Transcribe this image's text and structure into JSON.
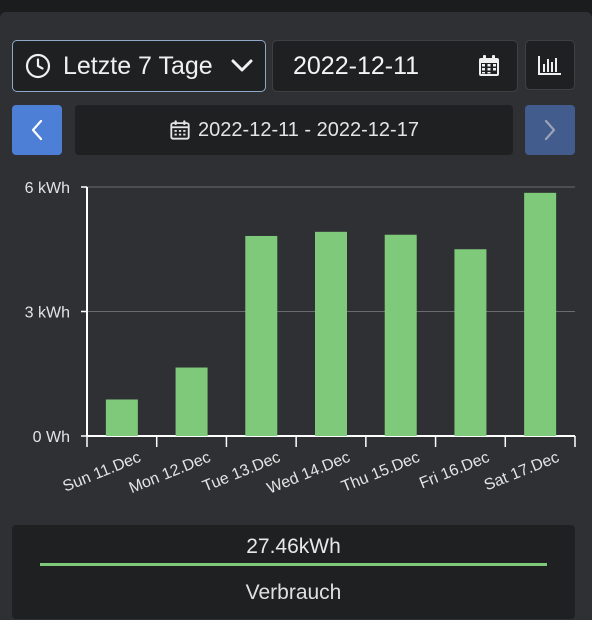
{
  "controls": {
    "range_label": "Letzte 7 Tage",
    "date_value": "2022-12-11",
    "range_display": "2022-12-11 - 2022-12-17"
  },
  "icons": {
    "clock": "clock-icon",
    "chevron": "chevron-down-icon",
    "calendar": "calendar-icon",
    "chart": "bar-chart-icon",
    "prev": "chevron-left-icon",
    "next": "chevron-right-icon"
  },
  "colors": {
    "bar": "#7fc97a",
    "prev_button": "#4d7fd6",
    "next_button": "#435c8e",
    "accent_border": "#8fa8c8"
  },
  "chart_data": {
    "type": "bar",
    "categories": [
      "Sun 11.Dec",
      "Mon 12.Dec",
      "Tue 13.Dec",
      "Wed 14.Dec",
      "Thu 15.Dec",
      "Fri 16.Dec",
      "Sat 17.Dec"
    ],
    "values": [
      0.88,
      1.65,
      4.82,
      4.92,
      4.85,
      4.5,
      5.86
    ],
    "unit": "kWh",
    "ylim": [
      0,
      6
    ],
    "yticks": [
      {
        "value": 0,
        "label": "0 Wh"
      },
      {
        "value": 3,
        "label": "3 kWh"
      },
      {
        "value": 6,
        "label": "6 kWh"
      }
    ],
    "grid": true
  },
  "summary": {
    "total": "27.46kWh",
    "caption": "Verbrauch"
  }
}
